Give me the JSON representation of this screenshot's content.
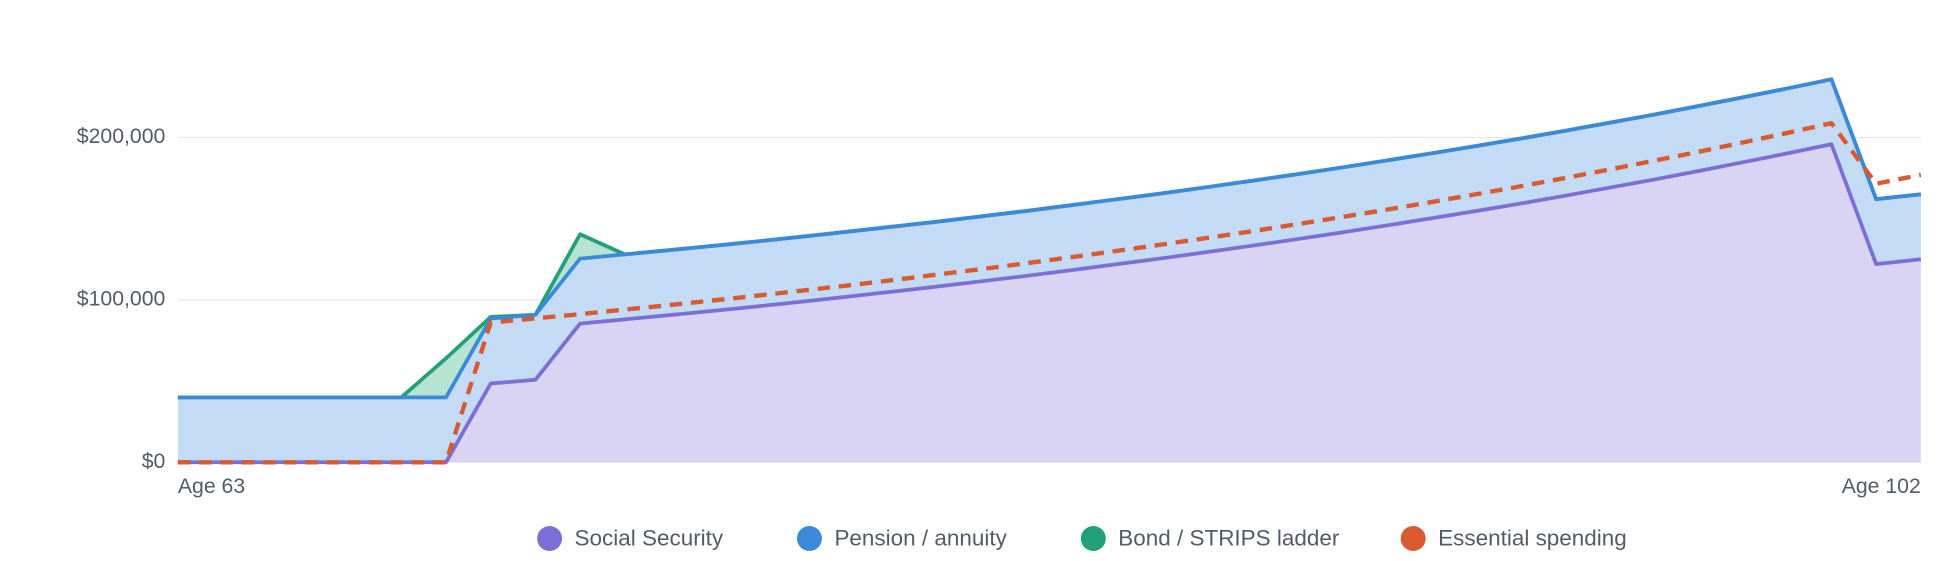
{
  "chart_data": {
    "type": "area",
    "stacked": true,
    "categories": [
      "Age 63",
      null,
      null,
      null,
      null,
      null,
      null,
      null,
      null,
      null,
      null,
      null,
      null,
      null,
      null,
      null,
      null,
      null,
      null,
      null,
      null,
      null,
      null,
      null,
      null,
      null,
      null,
      null,
      null,
      null,
      null,
      null,
      null,
      null,
      null,
      null,
      null,
      null,
      null,
      "Age 102"
    ],
    "series": [
      {
        "name": "Social Security",
        "color": "#7b6fd6",
        "fill": "#d9d4f4",
        "values": [
          0,
          0,
          0,
          0,
          0,
          0,
          0,
          48500,
          50800,
          85400,
          88000,
          90600,
          93300,
          96100,
          99000,
          102000,
          105100,
          108200,
          111500,
          114800,
          118300,
          121900,
          125500,
          129300,
          133200,
          137200,
          141300,
          145600,
          150000,
          154500,
          159100,
          163900,
          168900,
          173900,
          179200,
          184600,
          190100,
          195800,
          122000,
          125000
        ]
      },
      {
        "name": "Pension / annuity",
        "color": "#3b8ad9",
        "fill": "#c3dbf4",
        "values": [
          40000,
          40000,
          40000,
          40000,
          40000,
          40000,
          40000,
          40000,
          40000,
          40000,
          40000,
          40000,
          40000,
          40000,
          40000,
          40000,
          40000,
          40000,
          40000,
          40000,
          40000,
          40000,
          40000,
          40000,
          40000,
          40000,
          40000,
          40000,
          40000,
          40000,
          40000,
          40000,
          40000,
          40000,
          40000,
          40000,
          40000,
          40000,
          40000,
          40000
        ]
      },
      {
        "name": "Bond / STRIPS ladder",
        "color": "#23a077",
        "fill": "#b7e3d2",
        "values": [
          0,
          0,
          0,
          0,
          0,
          0,
          24000,
          1000,
          0,
          15000,
          0,
          0,
          0,
          0,
          0,
          0,
          0,
          0,
          0,
          0,
          0,
          0,
          0,
          0,
          0,
          0,
          0,
          0,
          0,
          0,
          0,
          0,
          0,
          0,
          0,
          0,
          0,
          0,
          0,
          0
        ]
      },
      {
        "name": "Essential spending",
        "color": "#d95a30",
        "type": "line",
        "dash": true,
        "values": [
          0,
          0,
          0,
          0,
          0,
          0,
          0,
          86000,
          88600,
          91200,
          94000,
          96800,
          99700,
          102700,
          105800,
          108900,
          112200,
          115600,
          119000,
          122600,
          126300,
          130100,
          134000,
          138000,
          142100,
          146400,
          150800,
          155300,
          160000,
          164800,
          169700,
          174800,
          180100,
          185500,
          191000,
          196800,
          202700,
          208800,
          171500,
          177000
        ]
      }
    ],
    "ylim": [
      0,
      250000
    ],
    "yticks": [
      {
        "value": 0,
        "label": "$0"
      },
      {
        "value": 100000,
        "label": "$100,000"
      },
      {
        "value": 200000,
        "label": "$200,000"
      }
    ],
    "grid": true,
    "legend": "bottom"
  }
}
